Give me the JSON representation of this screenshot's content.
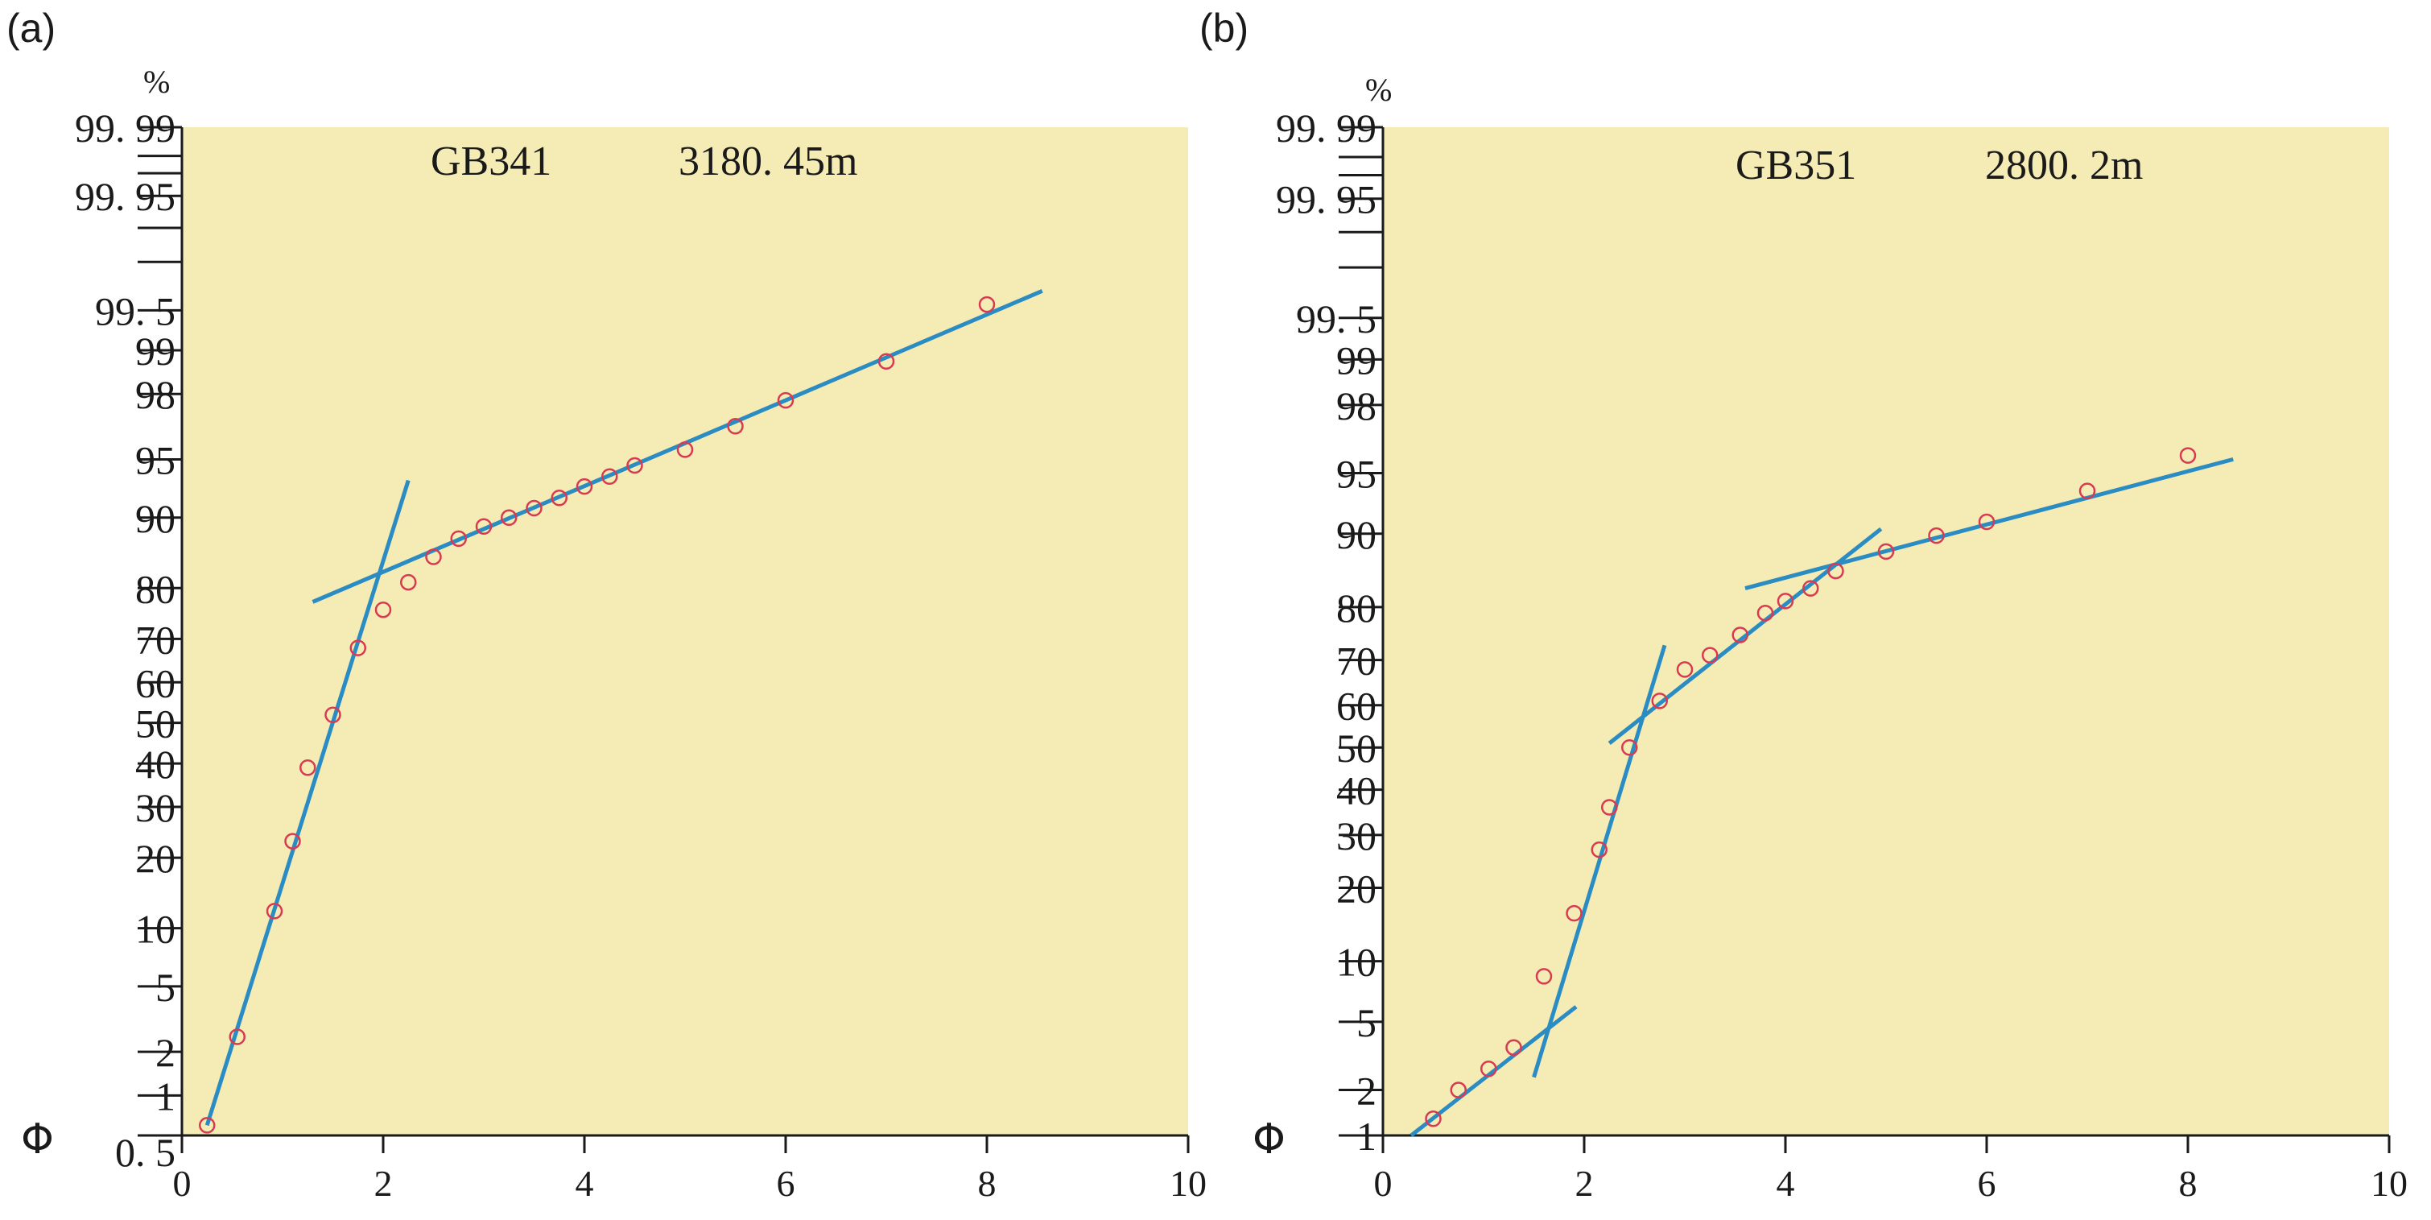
{
  "chart_data": [
    {
      "type": "scatter",
      "panel_label": "(a)",
      "title": "GB341",
      "subtitle": "3180. 45m",
      "ylabel": "%",
      "xlabel": "Φ",
      "scale": "probability",
      "xlim": [
        0,
        10
      ],
      "x_ticks": [
        0,
        2,
        4,
        6,
        8,
        10
      ],
      "y_ticks": [
        {
          "value": 0.5,
          "label": "0. 5",
          "labeled": true
        },
        {
          "value": 1,
          "label": "1",
          "labeled": true
        },
        {
          "value": 2,
          "label": "2",
          "labeled": true
        },
        {
          "value": 5,
          "label": "5",
          "labeled": true
        },
        {
          "value": 10,
          "label": "10",
          "labeled": true
        },
        {
          "value": 20,
          "label": "20",
          "labeled": true
        },
        {
          "value": 30,
          "label": "30",
          "labeled": true
        },
        {
          "value": 40,
          "label": "40",
          "labeled": true
        },
        {
          "value": 50,
          "label": "50",
          "labeled": true
        },
        {
          "value": 60,
          "label": "60",
          "labeled": true
        },
        {
          "value": 70,
          "label": "70",
          "labeled": true
        },
        {
          "value": 80,
          "label": "80",
          "labeled": true
        },
        {
          "value": 90,
          "label": "90",
          "labeled": true
        },
        {
          "value": 95,
          "label": "95",
          "labeled": true
        },
        {
          "value": 98,
          "label": "98",
          "labeled": true
        },
        {
          "value": 99,
          "label": "99",
          "labeled": true
        },
        {
          "value": 99.5,
          "label": "99. 5",
          "labeled": true
        },
        {
          "value": 99.8,
          "label": "",
          "labeled": false
        },
        {
          "value": 99.9,
          "label": "",
          "labeled": false
        },
        {
          "value": 99.95,
          "label": "99. 95",
          "labeled": true
        },
        {
          "value": 99.97,
          "label": "",
          "labeled": false
        },
        {
          "value": 99.98,
          "label": "",
          "labeled": false
        },
        {
          "value": 99.99,
          "label": "99. 99",
          "labeled": true
        }
      ],
      "points": [
        {
          "x": 0.25,
          "y": 0.6
        },
        {
          "x": 0.55,
          "y": 2.5
        },
        {
          "x": 0.92,
          "y": 12
        },
        {
          "x": 1.1,
          "y": 23
        },
        {
          "x": 1.25,
          "y": 39
        },
        {
          "x": 1.5,
          "y": 52
        },
        {
          "x": 1.75,
          "y": 68
        },
        {
          "x": 2.0,
          "y": 76
        },
        {
          "x": 2.25,
          "y": 81
        },
        {
          "x": 2.5,
          "y": 85
        },
        {
          "x": 2.75,
          "y": 87.5
        },
        {
          "x": 3.0,
          "y": 89
        },
        {
          "x": 3.25,
          "y": 90
        },
        {
          "x": 3.5,
          "y": 91
        },
        {
          "x": 3.75,
          "y": 92
        },
        {
          "x": 4.0,
          "y": 93
        },
        {
          "x": 4.25,
          "y": 93.8
        },
        {
          "x": 4.5,
          "y": 94.6
        },
        {
          "x": 5.0,
          "y": 95.6
        },
        {
          "x": 5.5,
          "y": 96.8
        },
        {
          "x": 6.0,
          "y": 97.8
        },
        {
          "x": 7.0,
          "y": 98.8
        },
        {
          "x": 8.0,
          "y": 99.55
        }
      ],
      "fit_lines": [
        {
          "x": [
            0.25,
            2.25
          ],
          "y": [
            0.6,
            93.5
          ]
        },
        {
          "x": [
            1.3,
            8.55
          ],
          "y": [
            77.5,
            99.65
          ]
        }
      ]
    },
    {
      "type": "scatter",
      "panel_label": "(b)",
      "title": "GB351",
      "subtitle": "2800. 2m",
      "ylabel": "%",
      "xlabel": "Φ",
      "scale": "probability",
      "xlim": [
        0,
        10
      ],
      "x_ticks": [
        0,
        2,
        4,
        6,
        8,
        10
      ],
      "y_ticks": [
        {
          "value": 1,
          "label": "1",
          "labeled": true
        },
        {
          "value": 2,
          "label": "2",
          "labeled": true
        },
        {
          "value": 5,
          "label": "5",
          "labeled": true
        },
        {
          "value": 10,
          "label": "10",
          "labeled": true
        },
        {
          "value": 20,
          "label": "20",
          "labeled": true
        },
        {
          "value": 30,
          "label": "30",
          "labeled": true
        },
        {
          "value": 40,
          "label": "40",
          "labeled": true
        },
        {
          "value": 50,
          "label": "50",
          "labeled": true
        },
        {
          "value": 60,
          "label": "60",
          "labeled": true
        },
        {
          "value": 70,
          "label": "70",
          "labeled": true
        },
        {
          "value": 80,
          "label": "80",
          "labeled": true
        },
        {
          "value": 90,
          "label": "90",
          "labeled": true
        },
        {
          "value": 95,
          "label": "95",
          "labeled": true
        },
        {
          "value": 98,
          "label": "98",
          "labeled": true
        },
        {
          "value": 99,
          "label": "99",
          "labeled": true
        },
        {
          "value": 99.5,
          "label": "99. 5",
          "labeled": true
        },
        {
          "value": 99.8,
          "label": "",
          "labeled": false
        },
        {
          "value": 99.9,
          "label": "",
          "labeled": false
        },
        {
          "value": 99.95,
          "label": "99. 95",
          "labeled": true
        },
        {
          "value": 99.97,
          "label": "",
          "labeled": false
        },
        {
          "value": 99.98,
          "label": "",
          "labeled": false
        },
        {
          "value": 99.99,
          "label": "99. 99",
          "labeled": true
        }
      ],
      "points": [
        {
          "x": 0.5,
          "y": 1.3
        },
        {
          "x": 0.75,
          "y": 2
        },
        {
          "x": 1.05,
          "y": 2.7
        },
        {
          "x": 1.3,
          "y": 3.6
        },
        {
          "x": 1.6,
          "y": 8.5
        },
        {
          "x": 1.9,
          "y": 16
        },
        {
          "x": 2.15,
          "y": 27
        },
        {
          "x": 2.25,
          "y": 36
        },
        {
          "x": 2.45,
          "y": 50
        },
        {
          "x": 2.75,
          "y": 61
        },
        {
          "x": 3.0,
          "y": 68
        },
        {
          "x": 3.25,
          "y": 71
        },
        {
          "x": 3.55,
          "y": 75
        },
        {
          "x": 3.8,
          "y": 79
        },
        {
          "x": 4.0,
          "y": 81
        },
        {
          "x": 4.25,
          "y": 83
        },
        {
          "x": 4.5,
          "y": 85.5
        },
        {
          "x": 5.0,
          "y": 88
        },
        {
          "x": 5.5,
          "y": 89.8
        },
        {
          "x": 6.0,
          "y": 91.2
        },
        {
          "x": 7.0,
          "y": 93.8
        },
        {
          "x": 8.0,
          "y": 96
        }
      ],
      "fit_lines": [
        {
          "x": [
            0.28,
            1.92
          ],
          "y": [
            1.0,
            6.0
          ]
        },
        {
          "x": [
            1.5,
            2.8
          ],
          "y": [
            2.4,
            73
          ]
        },
        {
          "x": [
            2.25,
            4.95
          ],
          "y": [
            51,
            90.5
          ]
        },
        {
          "x": [
            3.6,
            8.45
          ],
          "y": [
            83,
            95.8
          ]
        }
      ]
    }
  ]
}
